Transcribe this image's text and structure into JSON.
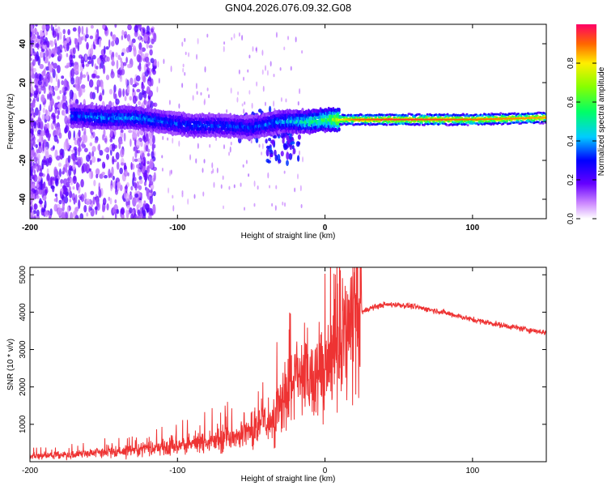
{
  "title": "GN04.2026.076.09.32.G08",
  "chart_data": [
    {
      "type": "heatmap",
      "name": "spectrogram",
      "xlabel": "Height of straight line (km)",
      "ylabel": "Frequency (Hz)",
      "xlim": [
        -200,
        150
      ],
      "ylim": [
        -50,
        50
      ],
      "xticks": [
        -200,
        -100,
        0,
        100
      ],
      "xtick_labels": [
        "-200",
        "-100",
        "0",
        "100"
      ],
      "yticks": [
        -40,
        -20,
        0,
        20,
        40
      ],
      "ytick_labels": [
        "-40",
        "-20",
        "0",
        "20",
        "40"
      ],
      "colorbar": {
        "label": "Normalized spectral amplitude",
        "range": [
          0,
          1
        ],
        "ticks": [
          0.0,
          0.2,
          0.4,
          0.6,
          0.8
        ],
        "tick_labels": [
          "0.0",
          "0.2",
          "0.4",
          "0.6",
          "0.8"
        ]
      },
      "ridge": {
        "x": [
          -170,
          -150,
          -130,
          -110,
          -90,
          -70,
          -50,
          -30,
          -20,
          -10,
          0,
          10,
          20,
          50,
          100,
          150
        ],
        "frequency": [
          3,
          2,
          2,
          0,
          -2,
          -2,
          -3,
          0,
          0,
          0,
          1,
          1,
          1,
          1,
          1,
          2
        ],
        "amplitude": [
          0.35,
          0.4,
          0.4,
          0.35,
          0.35,
          0.35,
          0.35,
          0.4,
          0.45,
          0.55,
          0.6,
          0.8,
          0.9,
          0.95,
          0.9,
          0.85
        ]
      }
    },
    {
      "type": "line",
      "name": "snr",
      "xlabel": "Height of straight line (km)",
      "ylabel": "SNR (10 * v/v)",
      "xlim": [
        -200,
        150
      ],
      "ylim": [
        0,
        5200
      ],
      "xticks": [
        -200,
        -100,
        0,
        100
      ],
      "xtick_labels": [
        "-200",
        "-100",
        "0",
        "100"
      ],
      "yticks": [
        1000,
        2000,
        3000,
        4000,
        5000
      ],
      "ytick_labels": [
        "1000",
        "2000",
        "3000",
        "4000",
        "5000"
      ],
      "color": "#ee3333",
      "series": [
        {
          "name": "SNR",
          "x": [
            -200,
            -180,
            -160,
            -140,
            -120,
            -100,
            -80,
            -60,
            -50,
            -40,
            -30,
            -25,
            -20,
            -15,
            -10,
            -5,
            0,
            5,
            10,
            15,
            20,
            25,
            30,
            40,
            50,
            60,
            80,
            100,
            120,
            150
          ],
          "y": [
            150,
            180,
            230,
            280,
            350,
            430,
            550,
            700,
            850,
            1100,
            1500,
            1800,
            2200,
            2400,
            2500,
            2300,
            2300,
            2800,
            3200,
            3500,
            3800,
            4000,
            4100,
            4200,
            4200,
            4150,
            4000,
            3800,
            3650,
            3450
          ]
        }
      ]
    }
  ]
}
